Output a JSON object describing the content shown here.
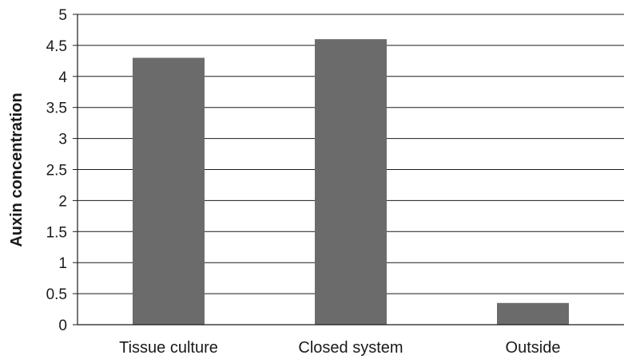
{
  "chart_data": {
    "type": "bar",
    "categories": [
      "Tissue culture",
      "Closed system",
      "Outside"
    ],
    "values": [
      4.3,
      4.6,
      0.35
    ],
    "xlabel": "",
    "ylabel": "Auxin concentration",
    "ylim": [
      0,
      5
    ],
    "yticks": [
      "0",
      "0.5",
      "1",
      "1.5",
      "2",
      "2.5",
      "3",
      "3.5",
      "4",
      "4.5",
      "5"
    ],
    "grid": "horizontal",
    "legend": "none",
    "colors": {
      "bar": "#6b6b6b",
      "grid": "#1a1a1a",
      "text": "#1a1a1a"
    }
  }
}
